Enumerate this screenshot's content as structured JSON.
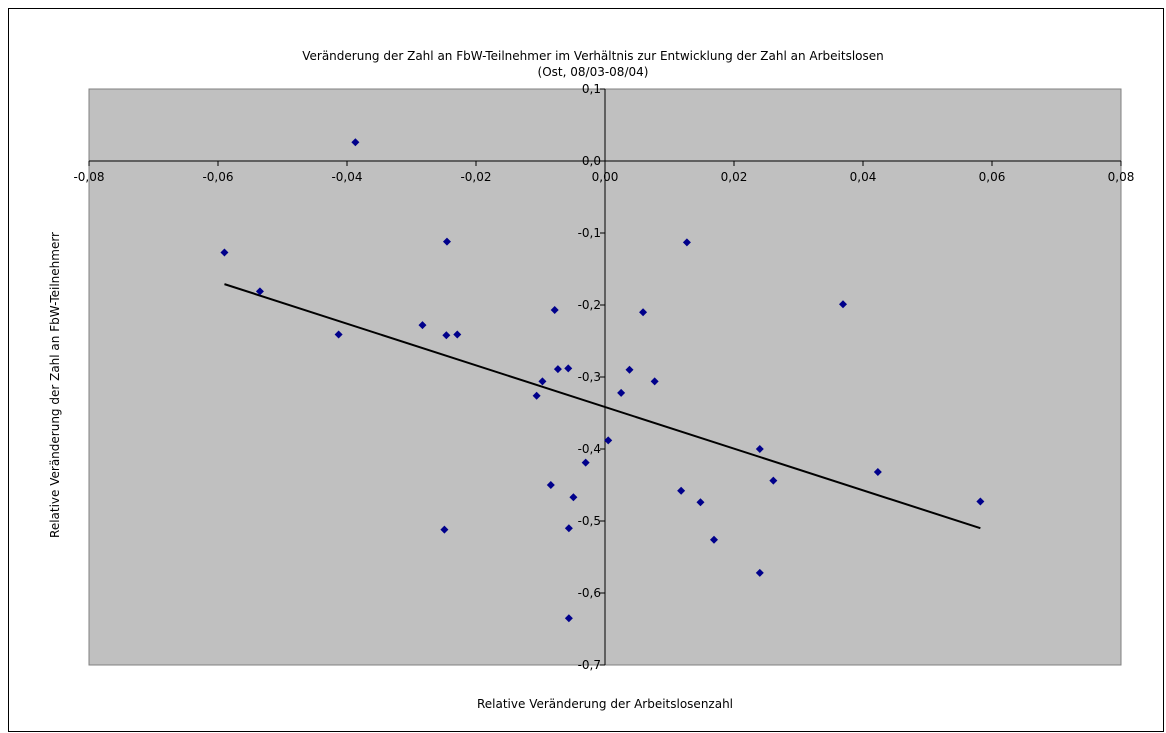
{
  "chart_data": {
    "type": "scatter",
    "title": "Veränderung der Zahl an FbW-Teilnehmer im Verhältnis zur Entwicklung der Zahl an Arbeitslosen",
    "subtitle": "(Ost, 08/03-08/04)",
    "xlabel": "Relative Veränderung der Arbeitslosenzahl",
    "ylabel": "Relative Veränderung der Zahl an FbW-Teilnehmerr",
    "xlim": [
      -0.08,
      0.08
    ],
    "ylim": [
      -0.7,
      0.1
    ],
    "x_ticks": [
      -0.08,
      -0.06,
      -0.04,
      -0.02,
      0.0,
      0.02,
      0.04,
      0.06,
      0.08
    ],
    "x_tick_labels": [
      "-0,08",
      "-0,06",
      "-0,04",
      "-0,02",
      "0,00",
      "0,02",
      "0,04",
      "0,06",
      "0,08"
    ],
    "y_ticks": [
      0.1,
      0.0,
      -0.1,
      -0.2,
      -0.3,
      -0.4,
      -0.5,
      -0.6,
      -0.7
    ],
    "y_tick_labels": [
      "0,1",
      "0,0",
      "-0,1",
      "-0,2",
      "-0,3",
      "-0,4",
      "-0,5",
      "-0,6",
      "-0,7"
    ],
    "grid": false,
    "legend": "none",
    "colors": {
      "plot_background": "#c0c0c0",
      "marker": "#00008b",
      "trendline": "#000000"
    },
    "series": [
      {
        "marker": "diamond",
        "points": [
          [
            -0.059,
            -0.127
          ],
          [
            -0.0535,
            -0.181
          ],
          [
            -0.0413,
            -0.241
          ],
          [
            -0.0387,
            0.026
          ],
          [
            -0.0283,
            -0.228
          ],
          [
            -0.0245,
            -0.112
          ],
          [
            -0.0246,
            -0.242
          ],
          [
            -0.0229,
            -0.241
          ],
          [
            -0.0249,
            -0.512
          ],
          [
            -0.0106,
            -0.326
          ],
          [
            -0.0097,
            -0.306
          ],
          [
            -0.0084,
            -0.45
          ],
          [
            -0.0078,
            -0.207
          ],
          [
            -0.0073,
            -0.289
          ],
          [
            -0.0057,
            -0.288
          ],
          [
            -0.0056,
            -0.51
          ],
          [
            -0.0056,
            -0.635
          ],
          [
            -0.0049,
            -0.467
          ],
          [
            -0.003,
            -0.419
          ],
          [
            0.0005,
            -0.388
          ],
          [
            0.0025,
            -0.322
          ],
          [
            0.0038,
            -0.29
          ],
          [
            0.0059,
            -0.21
          ],
          [
            0.0077,
            -0.306
          ],
          [
            0.0118,
            -0.458
          ],
          [
            0.0127,
            -0.113
          ],
          [
            0.0148,
            -0.474
          ],
          [
            0.0169,
            -0.526
          ],
          [
            0.024,
            -0.4
          ],
          [
            0.024,
            -0.572
          ],
          [
            0.0261,
            -0.444
          ],
          [
            0.0369,
            -0.199
          ],
          [
            0.0423,
            -0.432
          ],
          [
            0.0582,
            -0.473
          ]
        ]
      }
    ],
    "trendline": {
      "type": "linear",
      "x": [
        -0.059,
        0.0582
      ],
      "y": [
        -0.171,
        -0.51
      ]
    }
  }
}
